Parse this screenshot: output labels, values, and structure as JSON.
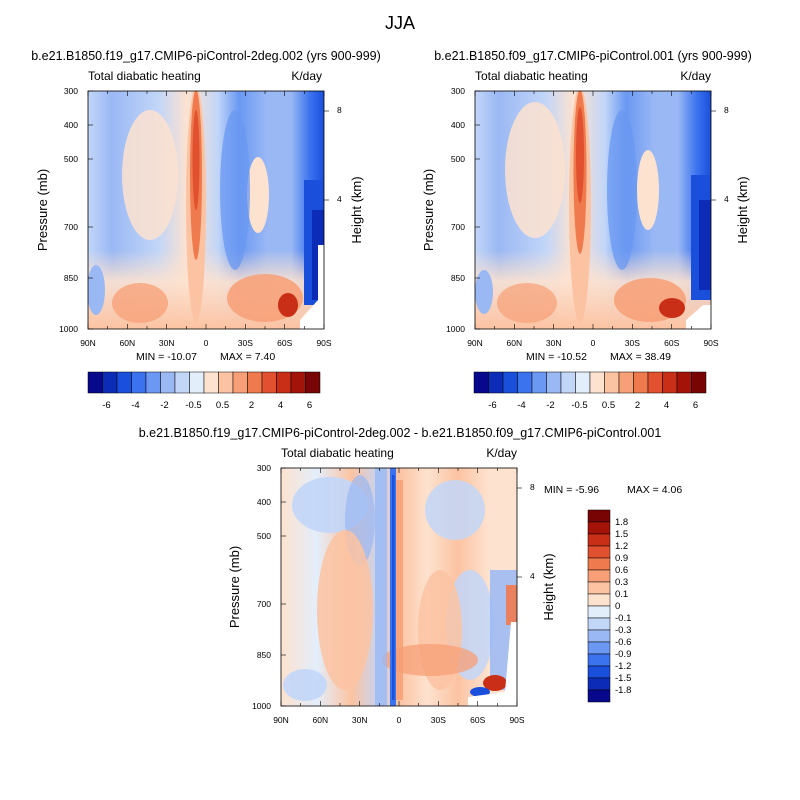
{
  "figure": {
    "title": "JJA"
  },
  "chart_data": [
    {
      "type": "heatmap",
      "title": "b.e21.B1850.f19_g17.CMIP6-piControl-2deg.002 (yrs 900-999)",
      "left_label": "Total diabatic heating",
      "right_label": "K/day",
      "xlabel": "",
      "ylabel": "Pressure (mb)",
      "right_axis_label": "Height (km)",
      "x_ticks": [
        "90N",
        "60N",
        "30N",
        "0",
        "30S",
        "60S",
        "90S"
      ],
      "y_ticks": [
        "300",
        "400",
        "500",
        "700",
        "850",
        "1000"
      ],
      "right_ticks": [
        "8",
        "4"
      ],
      "min_label": "MIN = -10.07",
      "max_label": "MAX =   7.40",
      "colorbar": {
        "orientation": "horizontal",
        "labels": [
          "-6",
          "-4",
          "-2",
          "-0.5",
          "0.5",
          "2",
          "4",
          "6"
        ]
      }
    },
    {
      "type": "heatmap",
      "title": "b.e21.B1850.f09_g17.CMIP6-piControl.001 (yrs 900-999)",
      "left_label": "Total diabatic heating",
      "right_label": "K/day",
      "xlabel": "",
      "ylabel": "Pressure (mb)",
      "right_axis_label": "Height (km)",
      "x_ticks": [
        "90N",
        "60N",
        "30N",
        "0",
        "30S",
        "60S",
        "90S"
      ],
      "y_ticks": [
        "300",
        "400",
        "500",
        "700",
        "850",
        "1000"
      ],
      "right_ticks": [
        "8",
        "4"
      ],
      "min_label": "MIN = -10.52",
      "max_label": "MAX =  38.49",
      "colorbar": {
        "orientation": "horizontal",
        "labels": [
          "-6",
          "-4",
          "-2",
          "-0.5",
          "0.5",
          "2",
          "4",
          "6"
        ]
      }
    },
    {
      "type": "heatmap",
      "title": "b.e21.B1850.f19_g17.CMIP6-piControl-2deg.002 - b.e21.B1850.f09_g17.CMIP6-piControl.001",
      "left_label": "Total diabatic heating",
      "right_label": "K/day",
      "xlabel": "",
      "ylabel": "Pressure (mb)",
      "right_axis_label": "Height (km)",
      "x_ticks": [
        "90N",
        "60N",
        "30N",
        "0",
        "30S",
        "60S",
        "90S"
      ],
      "y_ticks": [
        "300",
        "400",
        "500",
        "700",
        "850",
        "1000"
      ],
      "right_ticks": [
        "8",
        "4"
      ],
      "min_label": "MIN =  -5.96",
      "max_label": "MAX =   4.06",
      "colorbar": {
        "orientation": "vertical",
        "labels": [
          "1.8",
          "1.5",
          "1.2",
          "0.9",
          "0.6",
          "0.3",
          "0.1",
          "0",
          "-0.1",
          "-0.3",
          "-0.6",
          "-0.9",
          "-1.2",
          "-1.5",
          "-1.8"
        ]
      }
    }
  ],
  "palette": [
    "#08088c",
    "#0c2cb8",
    "#1a4fdc",
    "#3b73ee",
    "#6a98f2",
    "#9ab8f4",
    "#c2d6f8",
    "#e3eefb",
    "#fde2cf",
    "#fcc3a2",
    "#f79f76",
    "#ef7a4e",
    "#e2512f",
    "#c82f16",
    "#a31308",
    "#780404"
  ]
}
